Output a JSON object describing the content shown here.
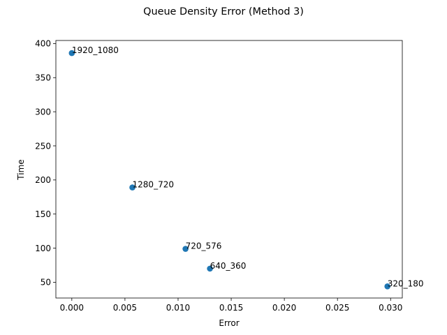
{
  "chart_data": {
    "type": "scatter",
    "title": "Queue Density Error (Method 3)",
    "xlabel": "Error",
    "ylabel": "Time",
    "xlim": [
      -0.0015,
      0.0311
    ],
    "ylim": [
      26.9,
      404.5
    ],
    "xticks": [
      0.0,
      0.005,
      0.01,
      0.015,
      0.02,
      0.025,
      0.03
    ],
    "xtick_labels": [
      "0.000",
      "0.005",
      "0.010",
      "0.015",
      "0.020",
      "0.025",
      "0.030"
    ],
    "yticks": [
      50,
      100,
      150,
      200,
      250,
      300,
      350,
      400
    ],
    "ytick_labels": [
      "50",
      "100",
      "150",
      "200",
      "250",
      "300",
      "350",
      "400"
    ],
    "grid": false,
    "color": "#1f77b4",
    "points": [
      {
        "label": "1920_1080",
        "x": 0.0,
        "y": 386
      },
      {
        "label": "1280_720",
        "x": 0.0057,
        "y": 189
      },
      {
        "label": "720_576",
        "x": 0.0107,
        "y": 99
      },
      {
        "label": "640_360",
        "x": 0.013,
        "y": 70
      },
      {
        "label": "320_180",
        "x": 0.0297,
        "y": 44
      }
    ]
  }
}
